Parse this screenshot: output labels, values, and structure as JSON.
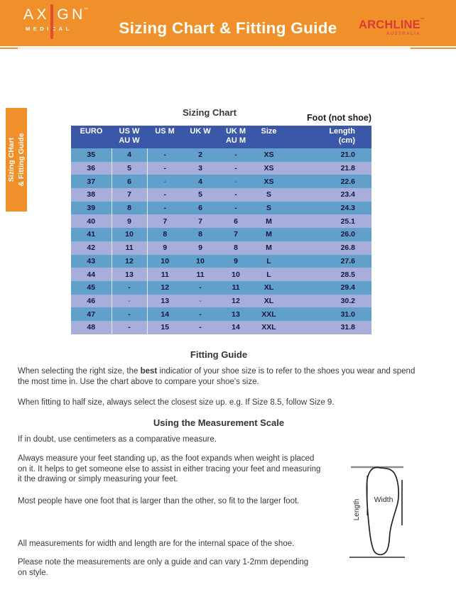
{
  "colors": {
    "orange": "#F0902B",
    "header-blue": "#3A57A8",
    "row-blue": "#61A0CB",
    "row-periwinkle": "#A8AEDA",
    "brand-red": "#DC3A35",
    "slash-red": "#E34B2E",
    "text-dark": "#3A3A39",
    "table-text": "#16163E"
  },
  "header": {
    "brand_left": {
      "name": "AXIGN",
      "tm": "™",
      "sub": "MEDICAL"
    },
    "title": "Sizing Chart & Fitting Guide",
    "brand_right": {
      "name": "ARCHLINE",
      "tm": "™",
      "sub": "AUSTRALIA"
    }
  },
  "side_tab": {
    "line1": "Sizing CHart",
    "line2": "& Fitting Guide"
  },
  "sizing_section": {
    "title": "Sizing Chart",
    "foot_label": "Foot (not shoe)"
  },
  "sizing_table": {
    "columns": [
      {
        "line1": "EURO",
        "line2": ""
      },
      {
        "line1": "US W",
        "line2": "AU W"
      },
      {
        "line1": "US M",
        "line2": ""
      },
      {
        "line1": "UK W",
        "line2": ""
      },
      {
        "line1": "UK M",
        "line2": "AU M"
      },
      {
        "line1": "Size",
        "line2": ""
      },
      {
        "line1": "Length",
        "line2": "(cm)"
      }
    ],
    "rows": [
      [
        "35",
        "4",
        "-",
        "2",
        "-",
        "XS",
        "21.0"
      ],
      [
        "36",
        "5",
        "-",
        "3",
        "-",
        "XS",
        "21.8"
      ],
      [
        "37",
        "6",
        "-",
        "4",
        "-",
        "XS",
        "22.6"
      ],
      [
        "38",
        "7",
        "-",
        "5",
        "-",
        "S",
        "23.4"
      ],
      [
        "39",
        "8",
        "-",
        "6",
        "-",
        "S",
        "24.3"
      ],
      [
        "40",
        "9",
        "7",
        "7",
        "6",
        "M",
        "25.1"
      ],
      [
        "41",
        "10",
        "8",
        "8",
        "7",
        "M",
        "26.0"
      ],
      [
        "42",
        "11",
        "9",
        "9",
        "8",
        "M",
        "26.8"
      ],
      [
        "43",
        "12",
        "10",
        "10",
        "9",
        "L",
        "27.6"
      ],
      [
        "44",
        "13",
        "11",
        "11",
        "10",
        "L",
        "28.5"
      ],
      [
        "45",
        "-",
        "12",
        "-",
        "11",
        "XL",
        "29.4"
      ],
      [
        "46",
        "-",
        "13",
        "-",
        "12",
        "XL",
        "30.2"
      ],
      [
        "47",
        "-",
        "14",
        "-",
        "13",
        "XXL",
        "31.0"
      ],
      [
        "48",
        "-",
        "15",
        "-",
        "14",
        "XXL",
        "31.8"
      ]
    ]
  },
  "fitting_guide": {
    "heading": "Fitting Guide",
    "p1_line1_pre": "When selecting the right size, the ",
    "p1_line1_bold": "best",
    "p1_line1_post": " indicatior of your shoe size is to refer to the shoes you wear and spend",
    "p1_line2": "the most time in. Use the chart above to compare your shoe's size.",
    "p2": "When fitting to half size, always select the closest size up. e.g. If Size 8.5, follow Size 9."
  },
  "measurement": {
    "heading": "Using the Measurement Scale",
    "p1": "If in doubt, use centimeters as a comparative measure.",
    "p2_lines": [
      "Always measure your feet standing up, as the foot expands when weight is placed",
      "on it. It helps to get someone else to assist in either tracing your feet and measuring",
      "it the drawing or simply measuring your feet."
    ],
    "p3": "Most people have one foot that is larger than the other, so fit to the larger foot."
  },
  "footnotes": {
    "p1": "All measurements for width and length are for the internal space of the shoe.",
    "p2_lines": [
      "Please note the measurements are only a guide and can vary 1-2mm depending",
      "on style."
    ]
  },
  "diagram": {
    "width_label": "Width",
    "length_label": "Length"
  }
}
